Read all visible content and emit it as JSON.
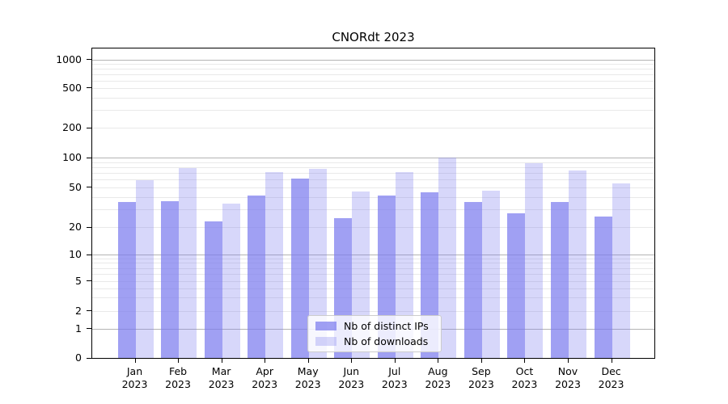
{
  "title": "CNORdt 2023",
  "legend": {
    "items": [
      {
        "label": "Nb of distinct IPs"
      },
      {
        "label": "Nb of downloads"
      }
    ]
  },
  "chart_data": {
    "type": "bar",
    "title": "CNORdt 2023",
    "categories": [
      "Jan 2023",
      "Feb 2023",
      "Mar 2023",
      "Apr 2023",
      "May 2023",
      "Jun 2023",
      "Jul 2023",
      "Aug 2023",
      "Sep 2023",
      "Oct 2023",
      "Nov 2023",
      "Dec 2023"
    ],
    "series": [
      {
        "name": "Nb of distinct IPs",
        "color": "rgba(124,124,238,0.72)",
        "solid_hex": "#a2a2f0",
        "values": [
          36,
          37,
          23,
          42,
          62,
          25,
          42,
          45,
          36,
          28,
          36,
          26
        ]
      },
      {
        "name": "Nb of downloads",
        "color": "rgba(124,124,238,0.30)",
        "solid_hex": "#d9d9f7",
        "values": [
          60,
          80,
          35,
          72,
          78,
          46,
          72,
          102,
          47,
          90,
          75,
          55
        ]
      }
    ],
    "xlabel": "",
    "ylabel": "",
    "yscale": "symlog",
    "yticks": [
      0,
      1,
      2,
      5,
      10,
      20,
      50,
      100,
      200,
      500,
      1000
    ],
    "ylim": [
      0,
      1320
    ],
    "grid": true,
    "legend_position": "lower center",
    "style": {
      "grid_major_color": "#b4b4b4",
      "grid_minor_color": "#e9e9e9",
      "spine_color": "#000000",
      "background": "#ffffff"
    }
  }
}
